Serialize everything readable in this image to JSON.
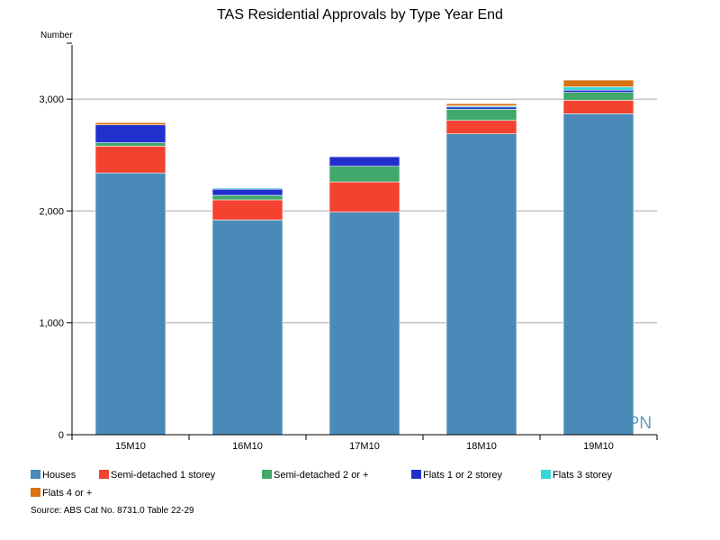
{
  "chart_data": {
    "type": "bar",
    "stacked": true,
    "title": "TAS Residential Approvals by Type Year End",
    "ylabel": "Number",
    "xlabel": "",
    "ylim": [
      0,
      3500
    ],
    "yticks": [
      0,
      1000,
      2000,
      3000
    ],
    "ytick_labels": [
      "0",
      "1,000",
      "2,000",
      "3,000"
    ],
    "grid": true,
    "categories": [
      "15M10",
      "16M10",
      "17M10",
      "18M10",
      "19M10"
    ],
    "series": [
      {
        "name": "Houses",
        "color": "#4a8ab8",
        "values": [
          2340,
          1920,
          1990,
          2690,
          2870
        ]
      },
      {
        "name": "Semi-detached 1 storey",
        "color": "#f44230",
        "values": [
          240,
          180,
          270,
          120,
          120
        ]
      },
      {
        "name": "Semi-detached 2 or +",
        "color": "#41a86b",
        "values": [
          30,
          40,
          140,
          100,
          70
        ]
      },
      {
        "name": "Flats 1 or 2 storey",
        "color": "#2130cc",
        "values": [
          160,
          55,
          85,
          20,
          20
        ]
      },
      {
        "name": "Flats 3 storey",
        "color": "#35d6d6",
        "values": [
          0,
          10,
          0,
          10,
          30
        ]
      },
      {
        "name": "Flats 4 or +",
        "color": "#da7214",
        "values": [
          20,
          0,
          0,
          20,
          60
        ]
      }
    ],
    "legend_position": "bottom",
    "source": "Source: ABS Cat No. 8731.0 Table 22-29",
    "watermark": "BPN"
  }
}
